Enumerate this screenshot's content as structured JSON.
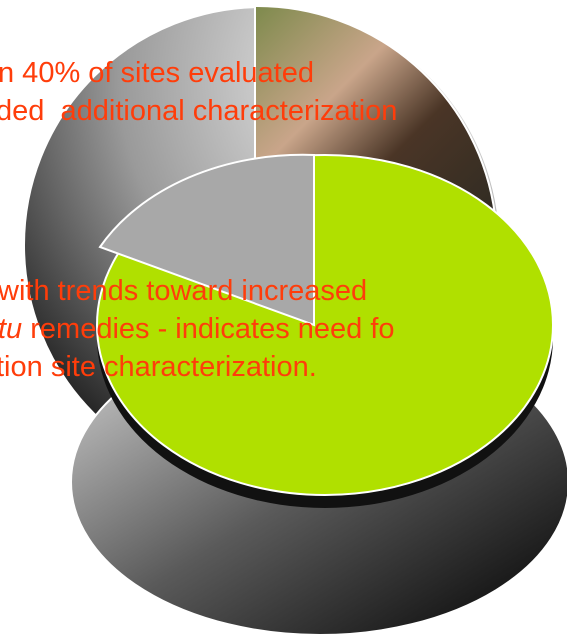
{
  "slide": {
    "lines": [
      {
        "text": "n 40% of sites evaluated"
      },
      {
        "text": "ded  additional characterization"
      },
      {
        "text": "with trends toward increased"
      },
      {
        "italic": "tu",
        "text": " remedies - indicates need fo"
      },
      {
        "text": "tion site characterization."
      }
    ]
  }
}
